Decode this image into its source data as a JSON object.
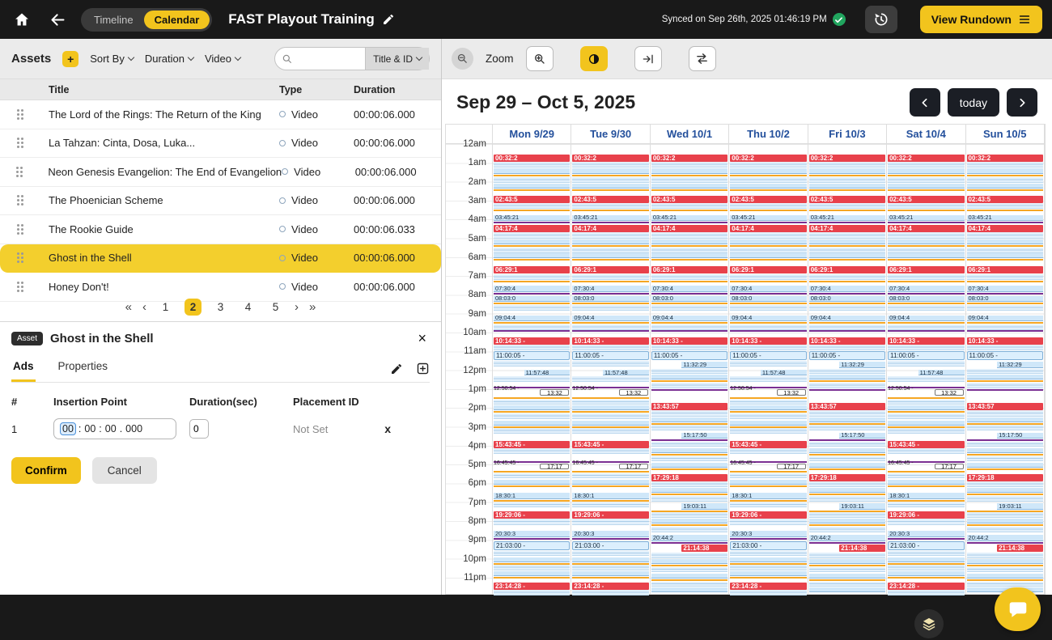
{
  "icons": {
    "plus": "+",
    "first_page": "«",
    "prev_page": "‹",
    "next_page": "›",
    "last_page": "»",
    "close": "×",
    "row_delete": "x"
  },
  "topbar": {
    "timeline_label": "Timeline",
    "calendar_label": "Calendar",
    "title": "FAST Playout Training",
    "synced_text": "Synced on Sep 26th, 2025 01:46:19 PM",
    "view_rundown_label": "View Rundown"
  },
  "assets": {
    "panel_title": "Assets",
    "filters": {
      "sort_by": "Sort By",
      "duration": "Duration",
      "type": "Video"
    },
    "search": {
      "scope": "Title & ID"
    },
    "table": {
      "columns": [
        "Title",
        "Type",
        "Duration"
      ],
      "rows": [
        {
          "title": "The Lord of the Rings: The Return of the King",
          "type": "Video",
          "duration": "00:00:06.000",
          "selected": false
        },
        {
          "title": "La Tahzan: Cinta, Dosa, Luka...",
          "type": "Video",
          "duration": "00:00:06.000",
          "selected": false
        },
        {
          "title": "Neon Genesis Evangelion: The End of Evangelion",
          "type": "Video",
          "duration": "00:00:06.000",
          "selected": false
        },
        {
          "title": "The Phoenician Scheme",
          "type": "Video",
          "duration": "00:00:06.000",
          "selected": false
        },
        {
          "title": "The Rookie Guide",
          "type": "Video",
          "duration": "00:00:06.033",
          "selected": false
        },
        {
          "title": "Ghost in the Shell",
          "type": "Video",
          "duration": "00:00:06.000",
          "selected": true
        },
        {
          "title": "Honey Don't!",
          "type": "Video",
          "duration": "00:00:06.000",
          "selected": false
        }
      ]
    },
    "pagination": {
      "pages": [
        "1",
        "2",
        "3",
        "4",
        "5"
      ],
      "active": "2"
    }
  },
  "asset_detail": {
    "badge": "Asset",
    "title": "Ghost in the Shell",
    "tabs": [
      {
        "label": "Ads",
        "active": true
      },
      {
        "label": "Properties",
        "active": false
      }
    ],
    "table": {
      "columns": [
        "#",
        "Insertion Point",
        "Duration(sec)",
        "Placement ID"
      ],
      "row": {
        "index": "1",
        "time_parts": [
          "00",
          "00",
          "00",
          "000"
        ],
        "seps": [
          ":",
          ":",
          "."
        ],
        "duration": "0",
        "placement": "Not Set"
      }
    },
    "confirm_label": "Confirm",
    "cancel_label": "Cancel"
  },
  "calendar": {
    "zoom_label": "Zoom",
    "range_title": "Sep 29 – Oct 5, 2025",
    "today_label": "today",
    "hours": [
      "12am",
      "1am",
      "2am",
      "3am",
      "4am",
      "5am",
      "6am",
      "7am",
      "8am",
      "9am",
      "10am",
      "11am",
      "12pm",
      "1pm",
      "2pm",
      "3pm",
      "4pm",
      "5pm",
      "6pm",
      "7pm",
      "8pm",
      "9pm",
      "10pm",
      "11pm"
    ],
    "days": [
      {
        "label": "Mon 9/29",
        "pattern": "A"
      },
      {
        "label": "Tue 9/30",
        "pattern": "A"
      },
      {
        "label": "Wed 10/1",
        "pattern": "B"
      },
      {
        "label": "Thu 10/2",
        "pattern": "A"
      },
      {
        "label": "Fri 10/3",
        "pattern": "B"
      },
      {
        "label": "Sat 10/4",
        "pattern": "A"
      },
      {
        "label": "Sun 10/5",
        "pattern": "B"
      }
    ],
    "patterns": {
      "head": [
        [
          0.54,
          0.4,
          "red",
          "00:32:2"
        ],
        [
          0.94,
          0.32,
          "body",
          ""
        ],
        [
          1.3,
          0.28,
          "blue",
          ""
        ],
        [
          1.62,
          0.09,
          "orange",
          ""
        ],
        [
          1.74,
          0.3,
          "body",
          ""
        ],
        [
          2.08,
          0.26,
          "blue",
          ""
        ],
        [
          2.38,
          0.09,
          "orange",
          ""
        ],
        [
          2.73,
          0.4,
          "red",
          "02:43:5"
        ],
        [
          3.13,
          0.32,
          "body",
          ""
        ],
        [
          3.49,
          0.09,
          "orange",
          ""
        ],
        [
          3.76,
          0.33,
          "blue",
          "03:45:21"
        ],
        [
          4.12,
          0.09,
          "purple",
          ""
        ],
        [
          4.29,
          0.4,
          "red",
          "04:17:4"
        ],
        [
          4.69,
          0.32,
          "body",
          ""
        ],
        [
          5.05,
          0.26,
          "blue",
          ""
        ],
        [
          5.35,
          0.09,
          "orange",
          ""
        ],
        [
          5.47,
          0.3,
          "body",
          ""
        ],
        [
          5.81,
          0.26,
          "blue",
          ""
        ],
        [
          6.11,
          0.09,
          "orange",
          ""
        ],
        [
          6.49,
          0.4,
          "red",
          "06:29:1"
        ],
        [
          6.89,
          0.32,
          "body",
          ""
        ],
        [
          7.25,
          0.09,
          "orange",
          ""
        ],
        [
          7.51,
          0.33,
          "blue",
          "07:30:4"
        ],
        [
          7.88,
          0.09,
          "purple",
          ""
        ],
        [
          8.05,
          0.33,
          "blue",
          "08:03:0"
        ],
        [
          8.42,
          0.09,
          "orange",
          ""
        ],
        [
          8.54,
          0.3,
          "body",
          ""
        ],
        [
          9.08,
          0.33,
          "blue",
          "09:04:4"
        ],
        [
          9.45,
          0.09,
          "orange",
          ""
        ],
        [
          9.57,
          0.28,
          "body",
          ""
        ],
        [
          9.89,
          0.09,
          "purple",
          ""
        ],
        [
          10.24,
          0.4,
          "red",
          "10:14:33 -"
        ],
        [
          10.64,
          0.3,
          "body",
          ""
        ]
      ],
      "A": [
        [
          11.0,
          0.48,
          "bluew",
          "11:00:05 -"
        ],
        [
          11.52,
          0.28,
          "body",
          ""
        ],
        [
          11.96,
          0.33,
          "blue",
          "11:57:48",
          "r"
        ],
        [
          12.33,
          0.28,
          "body",
          ""
        ],
        [
          12.85,
          0.13,
          "plabel",
          "12:50:54 -"
        ],
        [
          13.02,
          0.33,
          "box",
          "13:32"
        ],
        [
          13.42,
          0.09,
          "orange",
          ""
        ],
        [
          13.54,
          0.28,
          "body",
          ""
        ],
        [
          13.88,
          0.26,
          "blue",
          ""
        ],
        [
          14.18,
          0.09,
          "orange",
          ""
        ],
        [
          14.3,
          0.28,
          "body",
          ""
        ],
        [
          14.66,
          0.26,
          "blue",
          ""
        ],
        [
          14.96,
          0.09,
          "orange",
          ""
        ],
        [
          15.08,
          0.3,
          "body",
          ""
        ],
        [
          15.73,
          0.4,
          "red",
          "15:43:45 -"
        ],
        [
          16.13,
          0.32,
          "body",
          ""
        ],
        [
          16.76,
          0.13,
          "plabel",
          "16:45:45 -"
        ],
        [
          16.93,
          0.33,
          "box",
          "17:17"
        ],
        [
          17.33,
          0.09,
          "orange",
          ""
        ],
        [
          17.45,
          0.28,
          "body",
          ""
        ],
        [
          17.79,
          0.26,
          "blue",
          ""
        ],
        [
          18.09,
          0.09,
          "orange",
          ""
        ],
        [
          18.5,
          0.33,
          "blue",
          "18:30:1"
        ],
        [
          18.87,
          0.09,
          "orange",
          ""
        ],
        [
          18.99,
          0.28,
          "body",
          ""
        ],
        [
          19.48,
          0.4,
          "red",
          "19:29:06 -"
        ],
        [
          19.88,
          0.32,
          "body",
          ""
        ],
        [
          20.51,
          0.33,
          "blue",
          "20:30:3"
        ],
        [
          20.88,
          0.09,
          "purple",
          ""
        ],
        [
          21.05,
          0.48,
          "bluew",
          "21:03:00 -"
        ],
        [
          21.57,
          0.28,
          "body",
          ""
        ],
        [
          21.91,
          0.26,
          "blue",
          ""
        ],
        [
          22.21,
          0.09,
          "orange",
          ""
        ],
        [
          22.33,
          0.28,
          "body",
          ""
        ],
        [
          22.67,
          0.26,
          "blue",
          ""
        ],
        [
          22.97,
          0.09,
          "orange",
          ""
        ],
        [
          23.24,
          0.4,
          "red",
          "23:14:28 -"
        ],
        [
          23.64,
          0.32,
          "body",
          ""
        ]
      ],
      "B": [
        [
          11.0,
          0.44,
          "bluew",
          "11:00:05 -"
        ],
        [
          11.54,
          0.33,
          "blue",
          "11:32:29",
          "r"
        ],
        [
          11.91,
          0.28,
          "body",
          ""
        ],
        [
          12.25,
          0.26,
          "blue",
          ""
        ],
        [
          12.55,
          0.09,
          "orange",
          ""
        ],
        [
          12.67,
          0.28,
          "body",
          ""
        ],
        [
          13.01,
          0.09,
          "purple",
          ""
        ],
        [
          13.73,
          0.4,
          "red",
          "13:43:57"
        ],
        [
          14.13,
          0.32,
          "body",
          ""
        ],
        [
          14.49,
          0.26,
          "blue",
          ""
        ],
        [
          14.79,
          0.09,
          "orange",
          ""
        ],
        [
          14.91,
          0.28,
          "body",
          ""
        ],
        [
          15.3,
          0.33,
          "blue",
          "15:17:50",
          "r"
        ],
        [
          15.67,
          0.09,
          "purple",
          ""
        ],
        [
          15.79,
          0.28,
          "body",
          ""
        ],
        [
          16.13,
          0.26,
          "blue",
          ""
        ],
        [
          16.43,
          0.09,
          "orange",
          ""
        ],
        [
          16.55,
          0.28,
          "body",
          ""
        ],
        [
          16.89,
          0.26,
          "blue",
          ""
        ],
        [
          17.19,
          0.09,
          "orange",
          ""
        ],
        [
          17.49,
          0.4,
          "red",
          "17:29:18"
        ],
        [
          17.89,
          0.32,
          "body",
          ""
        ],
        [
          18.25,
          0.26,
          "blue",
          ""
        ],
        [
          18.55,
          0.09,
          "orange",
          ""
        ],
        [
          18.67,
          0.28,
          "body",
          ""
        ],
        [
          19.05,
          0.33,
          "blue",
          "19:03:11",
          "r"
        ],
        [
          19.42,
          0.09,
          "orange",
          ""
        ],
        [
          19.54,
          0.28,
          "body",
          ""
        ],
        [
          19.88,
          0.26,
          "blue",
          ""
        ],
        [
          20.18,
          0.09,
          "orange",
          ""
        ],
        [
          20.3,
          0.3,
          "body",
          ""
        ],
        [
          20.74,
          0.33,
          "blue",
          "20:44:2"
        ],
        [
          21.11,
          0.09,
          "purple",
          ""
        ],
        [
          21.24,
          0.4,
          "red",
          "21:14:38",
          "r"
        ],
        [
          21.68,
          0.28,
          "body",
          ""
        ],
        [
          22.02,
          0.26,
          "blue",
          ""
        ],
        [
          22.32,
          0.09,
          "orange",
          ""
        ],
        [
          22.44,
          0.28,
          "body",
          ""
        ],
        [
          22.78,
          0.26,
          "blue",
          ""
        ],
        [
          23.08,
          0.09,
          "orange",
          ""
        ],
        [
          23.2,
          0.28,
          "body",
          ""
        ],
        [
          23.52,
          0.26,
          "blue",
          ""
        ]
      ]
    },
    "colors": {
      "event_red": "#e8414b",
      "event_blue": "#cfe7f9",
      "stripe_orange": "#f5a623",
      "stripe_purple": "#7b2f92",
      "accent_yellow": "#f2c41d",
      "day_header_text": "#24509c"
    }
  }
}
